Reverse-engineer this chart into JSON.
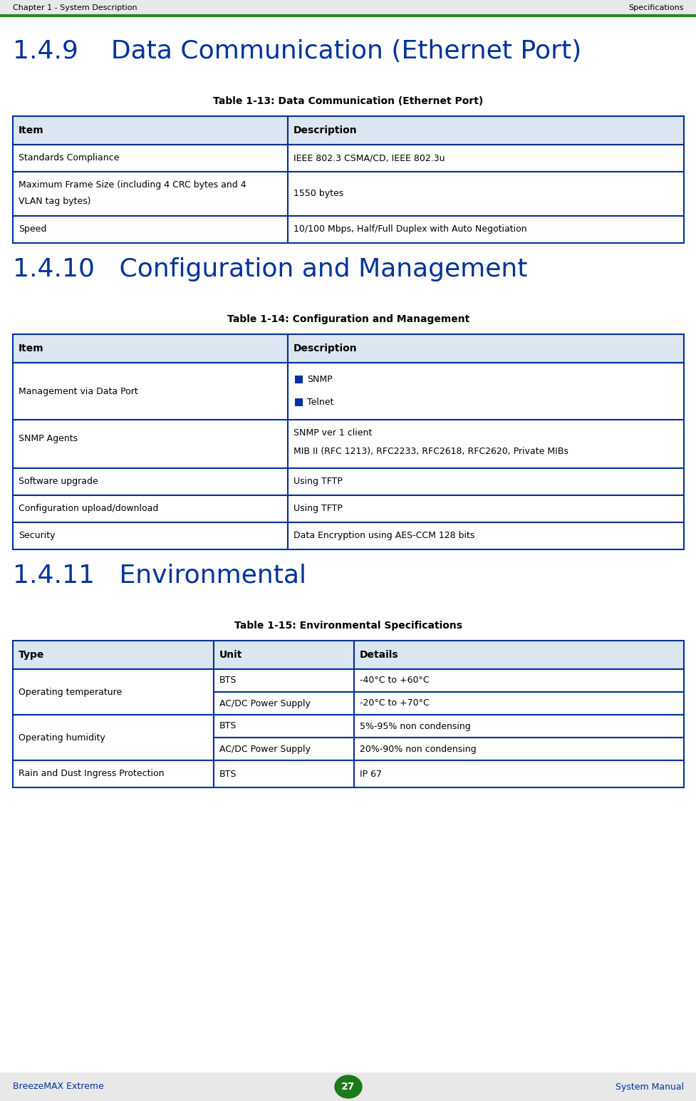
{
  "header_left": "Chapter 1 - System Description",
  "header_right": "Specifications",
  "header_line_color": "#228B22",
  "section1_title": "1.4.9    Data Communication (Ethernet Port)",
  "table1_title": "Table 1-13: Data Communication (Ethernet Port)",
  "section2_title": "1.4.10   Configuration and Management",
  "table2_title": "Table 1-14: Configuration and Management",
  "section3_title": "1.4.11   Environmental",
  "table3_title": "Table 1-15: Environmental Specifications",
  "footer_left": "BreezeMAX Extreme",
  "footer_center": "27",
  "footer_right": "System Manual",
  "header_bg": "#e8e8e8",
  "table_header_bg": "#dce6f1",
  "table_border_color": "#003399",
  "section_title_color": "#003399",
  "footer_text_color": "#003399",
  "footer_bg": "#e8e8e8",
  "page_bg": "#ffffff",
  "bullet_color": "#003399"
}
